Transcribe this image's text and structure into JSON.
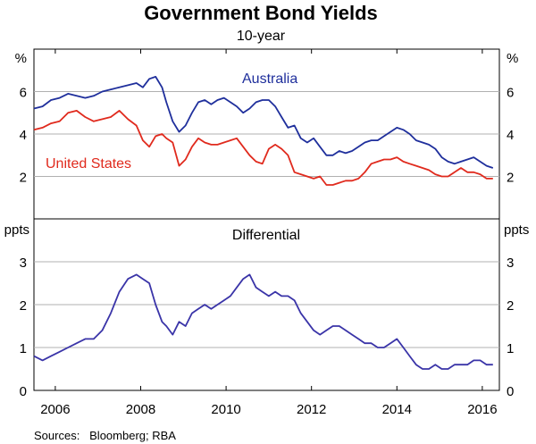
{
  "chart_data": [
    {
      "type": "line",
      "title": "Government Bond Yields",
      "subtitle": "10-year",
      "ylabel_left": "%",
      "ylabel_right": "%",
      "ylim": [
        0,
        8
      ],
      "yticks": [
        2,
        4,
        6
      ],
      "xlim": [
        2005.5,
        2016.4
      ],
      "grid": true,
      "series": [
        {
          "name": "Australia",
          "color": "#1f2f9c",
          "x": [
            2005.5,
            2005.7,
            2005.9,
            2006.1,
            2006.3,
            2006.5,
            2006.7,
            2006.9,
            2007.1,
            2007.3,
            2007.5,
            2007.7,
            2007.9,
            2008.05,
            2008.2,
            2008.35,
            2008.5,
            2008.6,
            2008.75,
            2008.9,
            2009.05,
            2009.2,
            2009.35,
            2009.5,
            2009.65,
            2009.8,
            2009.95,
            2010.1,
            2010.25,
            2010.4,
            2010.55,
            2010.7,
            2010.85,
            2011.0,
            2011.15,
            2011.3,
            2011.45,
            2011.6,
            2011.75,
            2011.9,
            2012.05,
            2012.2,
            2012.35,
            2012.5,
            2012.65,
            2012.8,
            2012.95,
            2013.1,
            2013.25,
            2013.4,
            2013.55,
            2013.7,
            2013.85,
            2014.0,
            2014.15,
            2014.3,
            2014.45,
            2014.6,
            2014.75,
            2014.9,
            2015.05,
            2015.2,
            2015.35,
            2015.5,
            2015.65,
            2015.8,
            2015.95,
            2016.1,
            2016.25
          ],
          "values": [
            5.2,
            5.3,
            5.6,
            5.7,
            5.9,
            5.8,
            5.7,
            5.8,
            6.0,
            6.1,
            6.2,
            6.3,
            6.4,
            6.2,
            6.6,
            6.7,
            6.2,
            5.5,
            4.6,
            4.1,
            4.4,
            5.0,
            5.5,
            5.6,
            5.4,
            5.6,
            5.7,
            5.5,
            5.3,
            5.0,
            5.2,
            5.5,
            5.6,
            5.6,
            5.3,
            4.8,
            4.3,
            4.4,
            3.8,
            3.6,
            3.8,
            3.4,
            3.0,
            3.0,
            3.2,
            3.1,
            3.2,
            3.4,
            3.6,
            3.7,
            3.7,
            3.9,
            4.1,
            4.3,
            4.2,
            4.0,
            3.7,
            3.6,
            3.5,
            3.3,
            2.9,
            2.7,
            2.6,
            2.7,
            2.8,
            2.9,
            2.7,
            2.5,
            2.4
          ]
        },
        {
          "name": "United States",
          "color": "#e02a1d",
          "x": [
            2005.5,
            2005.7,
            2005.9,
            2006.1,
            2006.3,
            2006.5,
            2006.7,
            2006.9,
            2007.1,
            2007.3,
            2007.5,
            2007.7,
            2007.9,
            2008.05,
            2008.2,
            2008.35,
            2008.5,
            2008.6,
            2008.75,
            2008.9,
            2009.05,
            2009.2,
            2009.35,
            2009.5,
            2009.65,
            2009.8,
            2009.95,
            2010.1,
            2010.25,
            2010.4,
            2010.55,
            2010.7,
            2010.85,
            2011.0,
            2011.15,
            2011.3,
            2011.45,
            2011.6,
            2011.75,
            2011.9,
            2012.05,
            2012.2,
            2012.35,
            2012.5,
            2012.65,
            2012.8,
            2012.95,
            2013.1,
            2013.25,
            2013.4,
            2013.55,
            2013.7,
            2013.85,
            2014.0,
            2014.15,
            2014.3,
            2014.45,
            2014.6,
            2014.75,
            2014.9,
            2015.05,
            2015.2,
            2015.35,
            2015.5,
            2015.65,
            2015.8,
            2015.95,
            2016.1,
            2016.25
          ],
          "values": [
            4.2,
            4.3,
            4.5,
            4.6,
            5.0,
            5.1,
            4.8,
            4.6,
            4.7,
            4.8,
            5.1,
            4.7,
            4.4,
            3.7,
            3.4,
            3.9,
            4.0,
            3.8,
            3.6,
            2.5,
            2.8,
            3.4,
            3.8,
            3.6,
            3.5,
            3.5,
            3.6,
            3.7,
            3.8,
            3.4,
            3.0,
            2.7,
            2.6,
            3.3,
            3.5,
            3.3,
            3.0,
            2.2,
            2.1,
            2.0,
            1.9,
            2.0,
            1.6,
            1.6,
            1.7,
            1.8,
            1.8,
            1.9,
            2.2,
            2.6,
            2.7,
            2.8,
            2.8,
            2.9,
            2.7,
            2.6,
            2.5,
            2.4,
            2.3,
            2.1,
            2.0,
            2.0,
            2.2,
            2.4,
            2.2,
            2.2,
            2.1,
            1.9,
            1.9
          ]
        }
      ],
      "annotations": [
        "Australia",
        "United States"
      ]
    },
    {
      "type": "line",
      "title": "Differential",
      "ylabel_left": "ppts",
      "ylabel_right": "ppts",
      "ylim": [
        0,
        4
      ],
      "yticks": [
        0,
        1,
        2,
        3
      ],
      "xlim": [
        2005.5,
        2016.4
      ],
      "xticks": [
        "2006",
        "2008",
        "2010",
        "2012",
        "2014",
        "2016"
      ],
      "grid": true,
      "series": [
        {
          "name": "Differential",
          "color": "#3a34a8",
          "x": [
            2005.5,
            2005.7,
            2005.9,
            2006.1,
            2006.3,
            2006.5,
            2006.7,
            2006.9,
            2007.1,
            2007.3,
            2007.5,
            2007.7,
            2007.9,
            2008.05,
            2008.2,
            2008.35,
            2008.5,
            2008.6,
            2008.75,
            2008.9,
            2009.05,
            2009.2,
            2009.35,
            2009.5,
            2009.65,
            2009.8,
            2009.95,
            2010.1,
            2010.25,
            2010.4,
            2010.55,
            2010.7,
            2010.85,
            2011.0,
            2011.15,
            2011.3,
            2011.45,
            2011.6,
            2011.75,
            2011.9,
            2012.05,
            2012.2,
            2012.35,
            2012.5,
            2012.65,
            2012.8,
            2012.95,
            2013.1,
            2013.25,
            2013.4,
            2013.55,
            2013.7,
            2013.85,
            2014.0,
            2014.15,
            2014.3,
            2014.45,
            2014.6,
            2014.75,
            2014.9,
            2015.05,
            2015.2,
            2015.35,
            2015.5,
            2015.65,
            2015.8,
            2015.95,
            2016.1,
            2016.25
          ],
          "values": [
            0.8,
            0.7,
            0.8,
            0.9,
            1.0,
            1.1,
            1.2,
            1.2,
            1.4,
            1.8,
            2.3,
            2.6,
            2.7,
            2.6,
            2.5,
            2.0,
            1.6,
            1.5,
            1.3,
            1.6,
            1.5,
            1.8,
            1.9,
            2.0,
            1.9,
            2.0,
            2.1,
            2.2,
            2.4,
            2.6,
            2.7,
            2.4,
            2.3,
            2.2,
            2.3,
            2.2,
            2.2,
            2.1,
            1.8,
            1.6,
            1.4,
            1.3,
            1.4,
            1.5,
            1.5,
            1.4,
            1.3,
            1.2,
            1.1,
            1.1,
            1.0,
            1.0,
            1.1,
            1.2,
            1.0,
            0.8,
            0.6,
            0.5,
            0.5,
            0.6,
            0.5,
            0.5,
            0.6,
            0.6,
            0.6,
            0.7,
            0.7,
            0.6,
            0.6
          ]
        }
      ]
    }
  ],
  "footer": {
    "sources": "Sources:   Bloomberg; RBA"
  }
}
